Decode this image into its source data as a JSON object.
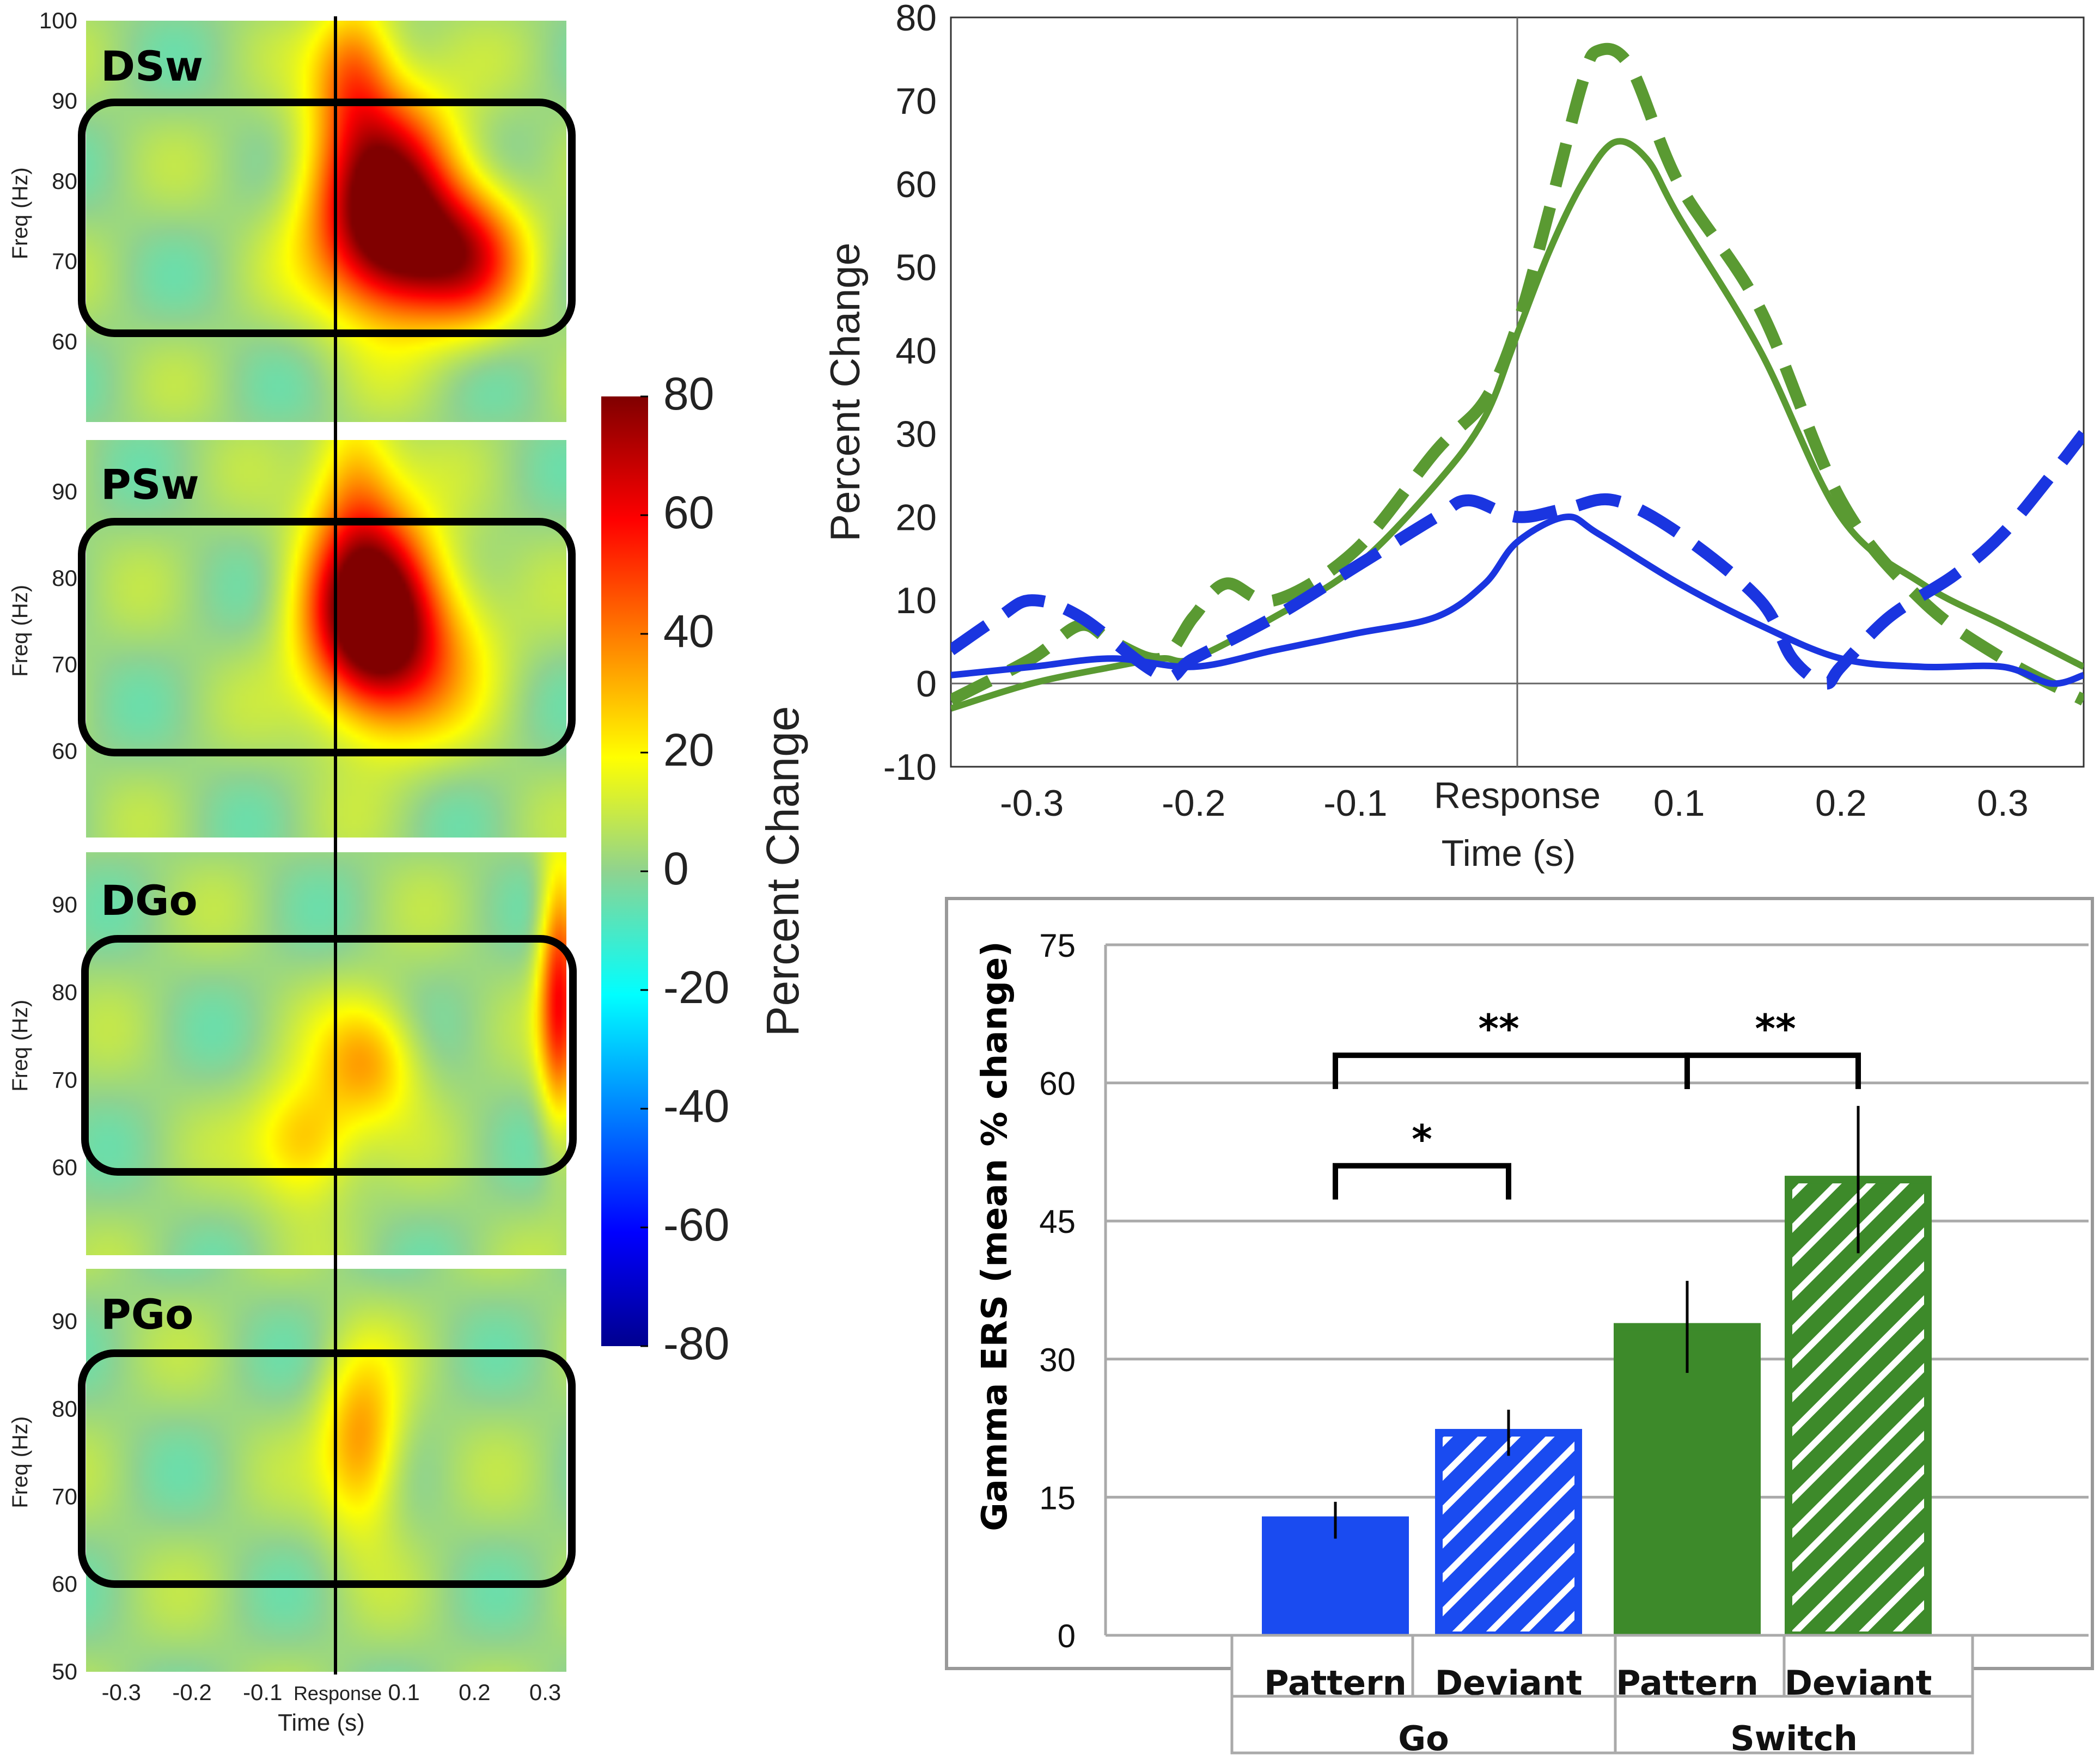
{
  "chart_data": [
    {
      "type": "heatmap",
      "panels": [
        {
          "name": "DSw",
          "ylim": [
            50,
            100
          ],
          "yticks": [
            100,
            90,
            80,
            70,
            60
          ],
          "blobs": [
            {
              "t": 0.07,
              "f": 78,
              "st": 0.07,
              "sf": 9,
              "v": 80
            },
            {
              "t": 0.13,
              "f": 71,
              "st": 0.08,
              "sf": 6,
              "v": 45
            },
            {
              "t": 0.03,
              "f": 94,
              "st": 0.04,
              "sf": 6,
              "v": 35
            },
            {
              "t": 0.2,
              "f": 70,
              "st": 0.05,
              "sf": 6,
              "v": 25
            }
          ]
        },
        {
          "name": "PSw",
          "ylim": [
            50,
            96
          ],
          "yticks": [
            90,
            80,
            70,
            60
          ],
          "blobs": [
            {
              "t": 0.05,
              "f": 77,
              "st": 0.06,
              "sf": 8,
              "v": 80
            },
            {
              "t": 0.1,
              "f": 72,
              "st": 0.08,
              "sf": 7,
              "v": 40
            },
            {
              "t": 0.03,
              "f": 92,
              "st": 0.04,
              "sf": 6,
              "v": 25
            }
          ]
        },
        {
          "name": "DGo",
          "ylim": [
            50,
            96
          ],
          "yticks": [
            90,
            80,
            70,
            60
          ],
          "blobs": [
            {
              "t": 0.05,
              "f": 72,
              "st": 0.05,
              "sf": 5,
              "v": 30
            },
            {
              "t": -0.04,
              "f": 63,
              "st": 0.05,
              "sf": 5,
              "v": 30
            },
            {
              "t": 0.32,
              "f": 80,
              "st": 0.02,
              "sf": 10,
              "v": 55
            }
          ]
        },
        {
          "name": "PGo",
          "ylim": [
            50,
            96
          ],
          "yticks": [
            90,
            80,
            70,
            60,
            50
          ],
          "blobs": [
            {
              "t": 0.04,
              "f": 76,
              "st": 0.04,
              "sf": 7,
              "v": 35
            }
          ]
        }
      ],
      "xticks": [
        "-0.3",
        "-0.2",
        "-0.1",
        "0.1",
        "0.2",
        "0.3"
      ],
      "xtick_values": [
        -0.3,
        -0.2,
        -0.1,
        0.1,
        0.2,
        0.3
      ],
      "xlim": [
        -0.35,
        0.33
      ],
      "event_label": "Response",
      "xlabel": "Time (s)",
      "ylabel": "Freq (Hz)"
    },
    {
      "type": "colorbar",
      "range": [
        -80,
        80
      ],
      "ticks": [
        "80",
        "60",
        "40",
        "20",
        "0",
        "-20",
        "-40",
        "-60",
        "-80"
      ],
      "tick_values": [
        80,
        60,
        40,
        20,
        0,
        -20,
        -40,
        -60,
        -80
      ],
      "label": "Percent Change"
    },
    {
      "type": "line",
      "xlim": [
        -0.35,
        0.35
      ],
      "ylim": [
        -10,
        80
      ],
      "xticks": [
        "-0.3",
        "-0.2",
        "-0.1",
        "0.1",
        "0.2",
        "0.3"
      ],
      "xtick_values": [
        -0.3,
        -0.2,
        -0.1,
        0.1,
        0.2,
        0.3
      ],
      "yticks": [
        "80",
        "70",
        "60",
        "50",
        "40",
        "30",
        "20",
        "10",
        "0",
        "-10"
      ],
      "ytick_values": [
        80,
        70,
        60,
        50,
        40,
        30,
        20,
        10,
        0,
        -10
      ],
      "event_label": "Response",
      "xlabel": "Time (s)",
      "ylabel": "Percent Change",
      "series": [
        {
          "name": "Switch Pattern",
          "color": "#5a9a32",
          "dash": false,
          "points": [
            [
              -0.35,
              -3
            ],
            [
              -0.3,
              0
            ],
            [
              -0.25,
              2
            ],
            [
              -0.22,
              3
            ],
            [
              -0.2,
              3
            ],
            [
              -0.15,
              8
            ],
            [
              -0.1,
              14
            ],
            [
              -0.05,
              24
            ],
            [
              -0.02,
              32
            ],
            [
              0,
              42
            ],
            [
              0.02,
              52
            ],
            [
              0.04,
              60
            ],
            [
              0.06,
              65
            ],
            [
              0.08,
              63
            ],
            [
              0.1,
              56
            ],
            [
              0.15,
              40
            ],
            [
              0.2,
              20
            ],
            [
              0.25,
              12
            ],
            [
              0.3,
              7
            ],
            [
              0.35,
              2
            ]
          ]
        },
        {
          "name": "Switch Deviant",
          "color": "#5a9a32",
          "dash": true,
          "points": [
            [
              -0.35,
              -2
            ],
            [
              -0.3,
              3
            ],
            [
              -0.27,
              7
            ],
            [
              -0.25,
              5
            ],
            [
              -0.22,
              3
            ],
            [
              -0.2,
              8
            ],
            [
              -0.18,
              12
            ],
            [
              -0.15,
              10
            ],
            [
              -0.1,
              16
            ],
            [
              -0.05,
              28
            ],
            [
              -0.02,
              34
            ],
            [
              0,
              43
            ],
            [
              0.02,
              57
            ],
            [
              0.04,
              72
            ],
            [
              0.05,
              76
            ],
            [
              0.07,
              74
            ],
            [
              0.1,
              60
            ],
            [
              0.15,
              45
            ],
            [
              0.2,
              22
            ],
            [
              0.25,
              10
            ],
            [
              0.3,
              3
            ],
            [
              0.35,
              -2
            ]
          ]
        },
        {
          "name": "Go Pattern",
          "color": "#1a35e0",
          "dash": false,
          "points": [
            [
              -0.35,
              1
            ],
            [
              -0.3,
              2
            ],
            [
              -0.25,
              3
            ],
            [
              -0.2,
              2
            ],
            [
              -0.15,
              4
            ],
            [
              -0.1,
              6
            ],
            [
              -0.05,
              8
            ],
            [
              -0.02,
              12
            ],
            [
              0,
              17
            ],
            [
              0.03,
              20
            ],
            [
              0.05,
              18
            ],
            [
              0.1,
              12
            ],
            [
              0.15,
              7
            ],
            [
              0.2,
              3
            ],
            [
              0.25,
              2
            ],
            [
              0.3,
              2
            ],
            [
              0.33,
              0
            ],
            [
              0.35,
              1
            ]
          ]
        },
        {
          "name": "Go Deviant",
          "color": "#1a35e0",
          "dash": true,
          "points": [
            [
              -0.35,
              4
            ],
            [
              -0.32,
              8
            ],
            [
              -0.3,
              10
            ],
            [
              -0.27,
              8
            ],
            [
              -0.22,
              1
            ],
            [
              -0.2,
              3
            ],
            [
              -0.15,
              8
            ],
            [
              -0.1,
              14
            ],
            [
              -0.05,
              20
            ],
            [
              -0.03,
              22
            ],
            [
              0,
              20
            ],
            [
              0.03,
              21
            ],
            [
              0.06,
              22
            ],
            [
              0.1,
              18
            ],
            [
              0.15,
              10
            ],
            [
              0.17,
              3
            ],
            [
              0.19,
              0
            ],
            [
              0.2,
              2
            ],
            [
              0.23,
              8
            ],
            [
              0.27,
              13
            ],
            [
              0.3,
              18
            ],
            [
              0.33,
              25
            ],
            [
              0.35,
              30
            ]
          ]
        }
      ]
    },
    {
      "type": "bar",
      "ylabel": "Gamma ERS (mean % change)",
      "ylim": [
        0,
        75
      ],
      "yticks": [
        "75",
        "60",
        "45",
        "30",
        "15",
        "0"
      ],
      "ytick_values": [
        75,
        60,
        45,
        30,
        15,
        0
      ],
      "categories": [
        "Pattern",
        "Deviant",
        "Pattern",
        "Deviant"
      ],
      "groups": [
        "Go",
        "Switch"
      ],
      "values": [
        12.5,
        22,
        33.5,
        49.5
      ],
      "errors": [
        2,
        2.5,
        5,
        8
      ],
      "colors": [
        "#1a4bf0",
        "#1a4bf0",
        "#3d8a2a",
        "#3d8a2a"
      ],
      "hatched": [
        false,
        true,
        false,
        true
      ],
      "significance": [
        {
          "label": "*",
          "from": 0,
          "to": 1,
          "y": 51
        },
        {
          "label": "**",
          "from": 0,
          "to": 2,
          "y": 63
        },
        {
          "label": "**",
          "from": 2,
          "to": 3,
          "y": 63
        }
      ]
    }
  ]
}
